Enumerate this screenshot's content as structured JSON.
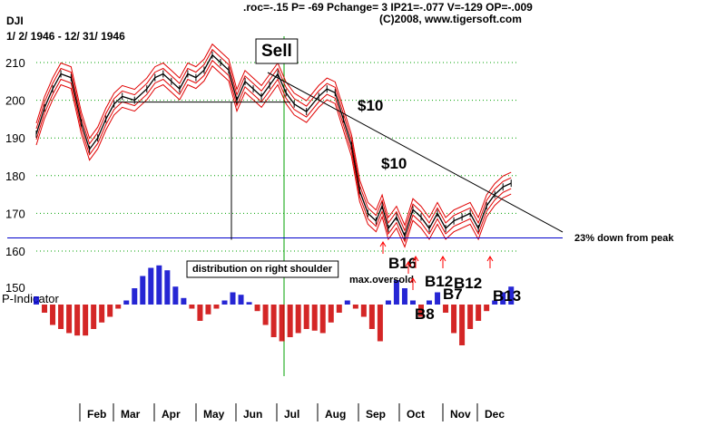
{
  "header": {
    "ticker": "DJI",
    "range": "1/ 2/ 1946 - 12/ 31/ 1946",
    "stats": ".roc=-.15 P= -69 Pchange=  3 IP21=-.077 V=-129 OP=-.009",
    "copyright": "(C)2008, www.tigersoft.com"
  },
  "colors": {
    "bands": "#e00000",
    "price": "#000000",
    "grid": "#00a000",
    "blue_line": "#0000cc",
    "pos_indicator": "#0000cc",
    "neg_indicator": "#cc0000",
    "arrow": "#ff0000"
  },
  "chart_data": [
    {
      "type": "line",
      "title": "DJI",
      "subtitle": "1/ 2/ 1946 - 12/ 31/ 1946",
      "x_unit": "month of 1946 (1.0 = Jan 1)",
      "xlim": [
        1,
        13
      ],
      "ylim": [
        155,
        220
      ],
      "y_ticks": [
        160,
        170,
        180,
        190,
        200,
        210
      ],
      "grid": "horizontal dotted",
      "x_ticks": [
        {
          "label": "Feb",
          "x": 2
        },
        {
          "label": "Mar",
          "x": 3
        },
        {
          "label": "Apr",
          "x": 4
        },
        {
          "label": "May",
          "x": 5
        },
        {
          "label": "Jun",
          "x": 6
        },
        {
          "label": "Jul",
          "x": 7
        },
        {
          "label": "Aug",
          "x": 8
        },
        {
          "label": "Sep",
          "x": 9
        },
        {
          "label": "Oct",
          "x": 10
        },
        {
          "label": "Nov",
          "x": 11
        },
        {
          "label": "Dec",
          "x": 12
        }
      ],
      "series": [
        {
          "name": "DJI",
          "x": [
            1.0,
            1.2,
            1.4,
            1.6,
            1.85,
            2.1,
            2.3,
            2.5,
            2.7,
            2.9,
            3.1,
            3.4,
            3.7,
            3.9,
            4.1,
            4.3,
            4.5,
            4.7,
            4.9,
            5.1,
            5.3,
            5.5,
            5.7,
            5.9,
            6.1,
            6.3,
            6.5,
            6.7,
            6.9,
            7.1,
            7.3,
            7.6,
            7.9,
            8.1,
            8.3,
            8.5,
            8.7,
            8.9,
            9.1,
            9.3,
            9.45,
            9.6,
            9.8,
            10.0,
            10.2,
            10.4,
            10.6,
            10.8,
            11.0,
            11.2,
            11.4,
            11.6,
            11.8,
            12.0,
            12.2,
            12.4,
            12.6
          ],
          "values": [
            191,
            198,
            203,
            207,
            206,
            194,
            187,
            190,
            195,
            199,
            201,
            200,
            203,
            206,
            207,
            205,
            203,
            207,
            206,
            208,
            212,
            210,
            208,
            200,
            205,
            203,
            201,
            204,
            207,
            202,
            199,
            197,
            201,
            203,
            202,
            195,
            188,
            176,
            170,
            168,
            172,
            166,
            169,
            164,
            171,
            169,
            166,
            170,
            166,
            168,
            169,
            170,
            166,
            172,
            175,
            177,
            178
          ]
        }
      ],
      "lines": [
        {
          "name": "support",
          "value": 163.5
        },
        {
          "name": "neckline",
          "value": 199.5
        }
      ],
      "annotations": [
        {
          "text": "Sell",
          "x": 7.0
        },
        {
          "text": "$10",
          "x": 8.6
        },
        {
          "text": "$10",
          "x": 9.0
        },
        {
          "text": "23% down from peak",
          "x": 13.5
        },
        {
          "text": "distribution on right shoulder",
          "x": 7.0
        },
        {
          "text": "B16",
          "x": 9.6
        },
        {
          "text": "max.oversold",
          "x": 9.3
        },
        {
          "text": "B12",
          "x": 10.7
        },
        {
          "text": "B7",
          "x": 10.8
        },
        {
          "text": "B12",
          "x": 11.2
        },
        {
          "text": "B8",
          "x": 10.3
        },
        {
          "text": "B13",
          "x": 11.7
        }
      ]
    },
    {
      "type": "bar",
      "title": "P-Indicator",
      "xlim": [
        1,
        13
      ],
      "x": [
        1.0,
        1.2,
        1.4,
        1.6,
        1.8,
        2.0,
        2.2,
        2.4,
        2.6,
        2.8,
        3.0,
        3.2,
        3.4,
        3.6,
        3.8,
        4.0,
        4.2,
        4.4,
        4.6,
        4.8,
        5.0,
        5.2,
        5.4,
        5.6,
        5.8,
        6.0,
        6.2,
        6.4,
        6.6,
        6.8,
        7.0,
        7.2,
        7.4,
        7.6,
        7.8,
        8.0,
        8.2,
        8.4,
        8.6,
        8.8,
        9.0,
        9.2,
        9.4,
        9.6,
        9.8,
        10.0,
        10.2,
        10.4,
        10.6,
        10.8,
        11.0,
        11.2,
        11.4,
        11.6,
        11.8,
        12.0,
        12.2,
        12.4,
        12.6
      ],
      "values": [
        10,
        -10,
        -25,
        -30,
        -35,
        -38,
        -38,
        -30,
        -22,
        -15,
        -5,
        5,
        20,
        35,
        45,
        48,
        42,
        22,
        8,
        -5,
        -20,
        -12,
        -5,
        5,
        15,
        12,
        3,
        -8,
        -25,
        -40,
        -45,
        -40,
        -35,
        -30,
        -32,
        -35,
        -22,
        -10,
        5,
        -5,
        -15,
        -30,
        -45,
        5,
        30,
        20,
        5,
        -15,
        5,
        15,
        -10,
        -35,
        -50,
        -30,
        -20,
        -8,
        5,
        15,
        22
      ],
      "ylim": [
        -60,
        60
      ]
    }
  ]
}
